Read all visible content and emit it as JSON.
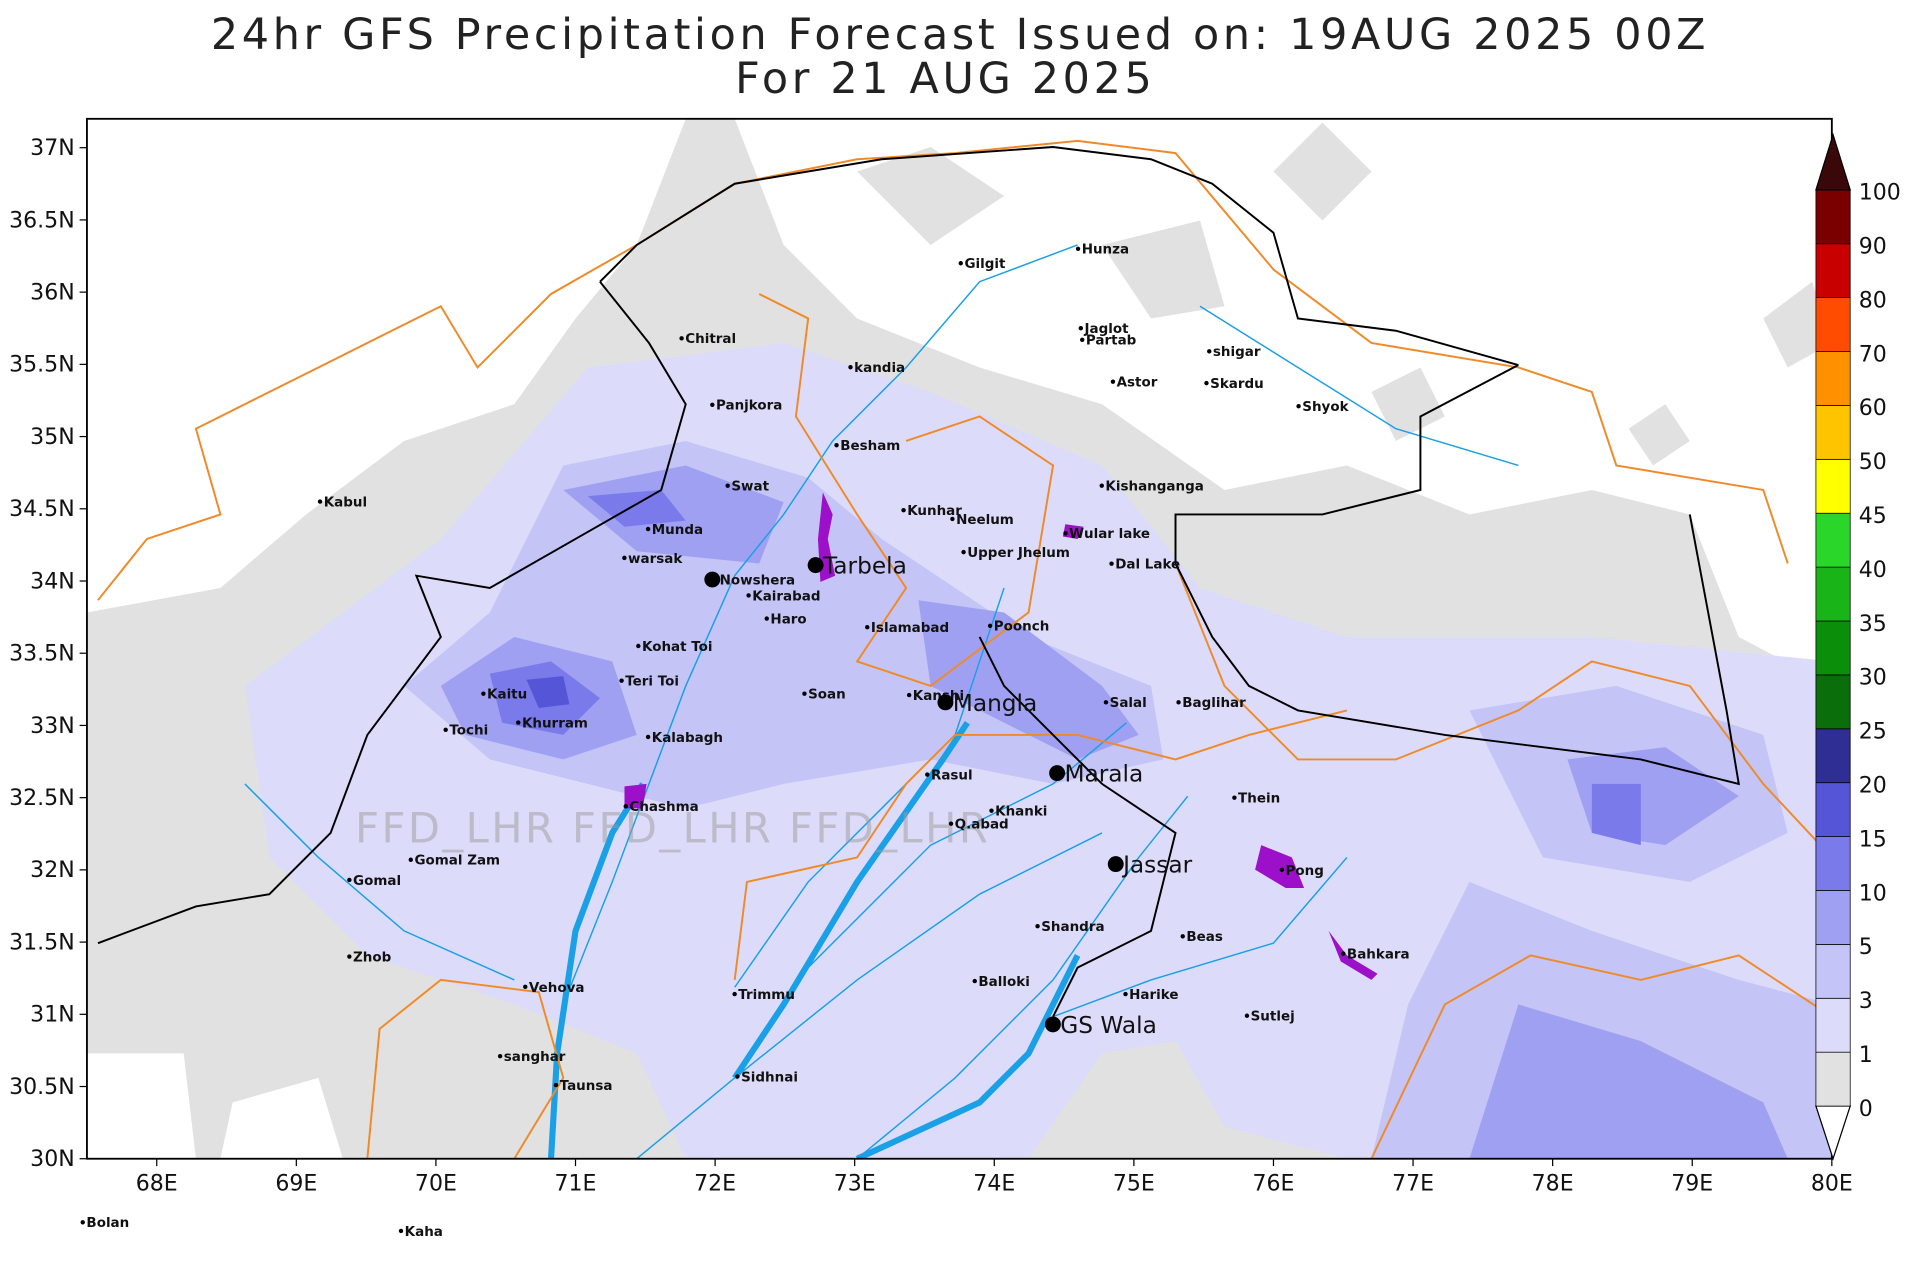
{
  "map": {
    "title": [
      "24hr GFS Precipitation Forecast Issued on:  19AUG 2025 00Z",
      "For 21 AUG 2025"
    ],
    "lonlim": [
      67.5,
      80
    ],
    "latlim": [
      30,
      37.2
    ],
    "lon_ticks": [
      {
        "value": 68,
        "label": "68E"
      },
      {
        "value": 69,
        "label": "69E"
      },
      {
        "value": 70,
        "label": "70E"
      },
      {
        "value": 71,
        "label": "71E"
      },
      {
        "value": 72,
        "label": "72E"
      },
      {
        "value": 73,
        "label": "73E"
      },
      {
        "value": 74,
        "label": "74E"
      },
      {
        "value": 75,
        "label": "75E"
      },
      {
        "value": 76,
        "label": "76E"
      },
      {
        "value": 77,
        "label": "77E"
      },
      {
        "value": 78,
        "label": "78E"
      },
      {
        "value": 79,
        "label": "79E"
      },
      {
        "value": 80,
        "label": "80E"
      }
    ],
    "lat_ticks": [
      {
        "value": 30,
        "label": "30N"
      },
      {
        "value": 30.5,
        "label": "30.5N"
      },
      {
        "value": 31,
        "label": "31N"
      },
      {
        "value": 31.5,
        "label": "31.5N"
      },
      {
        "value": 32,
        "label": "32N"
      },
      {
        "value": 32.5,
        "label": "32.5N"
      },
      {
        "value": 33,
        "label": "33N"
      },
      {
        "value": 33.5,
        "label": "33.5N"
      },
      {
        "value": 34,
        "label": "34N"
      },
      {
        "value": 34.5,
        "label": "34.5N"
      },
      {
        "value": 35,
        "label": "35N"
      },
      {
        "value": 35.5,
        "label": "35.5N"
      },
      {
        "value": 36,
        "label": "36N"
      },
      {
        "value": 36.5,
        "label": "36.5N"
      },
      {
        "value": 37,
        "label": "37N"
      }
    ],
    "watermark": "FFD_LHR FFD_LHR FFD_LHR",
    "colorbar": {
      "levels": [
        0,
        1,
        3,
        5,
        10,
        15,
        20,
        25,
        30,
        35,
        40,
        45,
        50,
        60,
        70,
        80,
        90,
        100
      ],
      "colors": [
        "#ffffff",
        "#e1e1e1",
        "#dcdcfa",
        "#c4c4f7",
        "#a0a0f2",
        "#7a7aea",
        "#5555d8",
        "#2e2e94",
        "#0a6e0a",
        "#0b8f0b",
        "#18b418",
        "#2ad62a",
        "#ffff00",
        "#ffc400",
        "#ff9000",
        "#ff4c00",
        "#c80000",
        "#7a0000",
        "#3a0808"
      ]
    },
    "cities": [
      {
        "name": "Gilgit",
        "lon": 73.76,
        "lat": 36.2
      },
      {
        "name": "Hunza",
        "lon": 74.6,
        "lat": 36.3
      },
      {
        "name": "Jaglot",
        "lon": 74.62,
        "lat": 35.75
      },
      {
        "name": "Partab",
        "lon": 74.63,
        "lat": 35.67
      },
      {
        "name": "shigar",
        "lon": 75.54,
        "lat": 35.59
      },
      {
        "name": "Skardu",
        "lon": 75.52,
        "lat": 35.37
      },
      {
        "name": "Astor",
        "lon": 74.85,
        "lat": 35.38
      },
      {
        "name": "Shyok",
        "lon": 76.18,
        "lat": 35.21
      },
      {
        "name": "Chitral",
        "lon": 71.76,
        "lat": 35.68
      },
      {
        "name": "kandia",
        "lon": 72.97,
        "lat": 35.48
      },
      {
        "name": "Panjkora",
        "lon": 71.98,
        "lat": 35.22
      },
      {
        "name": "Besham",
        "lon": 72.87,
        "lat": 34.94
      },
      {
        "name": "Kishanganga",
        "lon": 74.77,
        "lat": 34.66
      },
      {
        "name": "Swat",
        "lon": 72.09,
        "lat": 34.66
      },
      {
        "name": "Kunhar",
        "lon": 73.35,
        "lat": 34.49
      },
      {
        "name": "Neelum",
        "lon": 73.7,
        "lat": 34.43
      },
      {
        "name": "Munda",
        "lon": 71.52,
        "lat": 34.36
      },
      {
        "name": "Wular lake",
        "lon": 74.51,
        "lat": 34.33
      },
      {
        "name": "Upper Jhelum",
        "lon": 73.78,
        "lat": 34.2
      },
      {
        "name": "warsak",
        "lon": 71.35,
        "lat": 34.16
      },
      {
        "name": "Dal Lake",
        "lon": 74.84,
        "lat": 34.12
      },
      {
        "name": "Nowshera",
        "lon": 71.98,
        "lat": 34.01,
        "major": false,
        "big": true
      },
      {
        "name": "Tarbela",
        "lon": 72.72,
        "lat": 34.11,
        "major": true
      },
      {
        "name": "Kabul",
        "lon": 69.17,
        "lat": 34.55
      },
      {
        "name": "Kairabad",
        "lon": 72.24,
        "lat": 33.9
      },
      {
        "name": "Haro",
        "lon": 72.37,
        "lat": 33.74
      },
      {
        "name": "Islamabad",
        "lon": 73.09,
        "lat": 33.68
      },
      {
        "name": "Poonch",
        "lon": 73.97,
        "lat": 33.69
      },
      {
        "name": "Kohat Toi",
        "lon": 71.45,
        "lat": 33.55
      },
      {
        "name": "Teri Toi",
        "lon": 71.33,
        "lat": 33.31
      },
      {
        "name": "Soan",
        "lon": 72.64,
        "lat": 33.22
      },
      {
        "name": "Kanshi",
        "lon": 73.39,
        "lat": 33.21
      },
      {
        "name": "Mangla",
        "lon": 73.65,
        "lat": 33.16,
        "major": true
      },
      {
        "name": "Kaitu",
        "lon": 70.34,
        "lat": 33.22
      },
      {
        "name": "Salal",
        "lon": 74.8,
        "lat": 33.16
      },
      {
        "name": "Baglihar",
        "lon": 75.32,
        "lat": 33.16
      },
      {
        "name": "Khurram",
        "lon": 70.59,
        "lat": 33.02
      },
      {
        "name": "Tochi",
        "lon": 70.07,
        "lat": 32.97
      },
      {
        "name": "Kalabagh",
        "lon": 71.52,
        "lat": 32.92
      },
      {
        "name": "Rasul",
        "lon": 73.52,
        "lat": 32.66
      },
      {
        "name": "Marala",
        "lon": 74.45,
        "lat": 32.67,
        "major": true
      },
      {
        "name": "Chashma",
        "lon": 71.36,
        "lat": 32.44
      },
      {
        "name": "Thein",
        "lon": 75.72,
        "lat": 32.5
      },
      {
        "name": "Khanki",
        "lon": 73.98,
        "lat": 32.41
      },
      {
        "name": "Q.abad",
        "lon": 73.69,
        "lat": 32.32
      },
      {
        "name": "Gomal Zam",
        "lon": 69.82,
        "lat": 32.07
      },
      {
        "name": "Gomal",
        "lon": 69.38,
        "lat": 31.93
      },
      {
        "name": "Jassar",
        "lon": 74.87,
        "lat": 32.04,
        "major": true
      },
      {
        "name": "Pong",
        "lon": 76.06,
        "lat": 32.0
      },
      {
        "name": "Shandra",
        "lon": 74.31,
        "lat": 31.61
      },
      {
        "name": "Beas",
        "lon": 75.35,
        "lat": 31.54
      },
      {
        "name": "Bahkara",
        "lon": 76.5,
        "lat": 31.42
      },
      {
        "name": "Zhob",
        "lon": 69.38,
        "lat": 31.4
      },
      {
        "name": "Vehova",
        "lon": 70.64,
        "lat": 31.19
      },
      {
        "name": "Balloki",
        "lon": 73.86,
        "lat": 31.23
      },
      {
        "name": "Trimmu",
        "lon": 72.14,
        "lat": 31.14
      },
      {
        "name": "Harike",
        "lon": 74.94,
        "lat": 31.14
      },
      {
        "name": "Sutlej",
        "lon": 75.81,
        "lat": 30.99
      },
      {
        "name": "GS Wala",
        "lon": 74.42,
        "lat": 30.93,
        "major": true
      },
      {
        "name": "sanghar",
        "lon": 70.46,
        "lat": 30.71
      },
      {
        "name": "Taunsa",
        "lon": 70.86,
        "lat": 30.51
      },
      {
        "name": "Sidhnai",
        "lon": 72.16,
        "lat": 30.57
      },
      {
        "name": "Bolan",
        "lon": 67.47,
        "lat": 29.56
      },
      {
        "name": "Kaha",
        "lon": 69.75,
        "lat": 29.5
      }
    ]
  }
}
